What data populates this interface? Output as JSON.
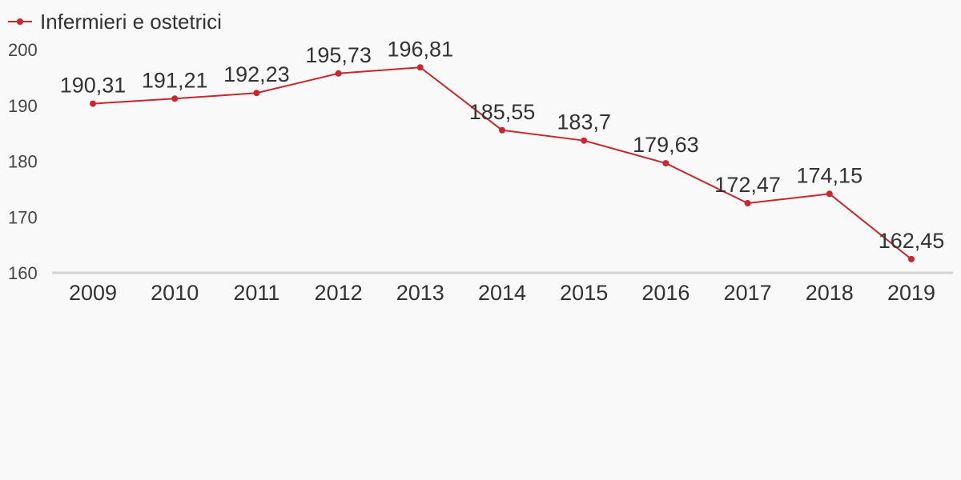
{
  "chart_data": {
    "type": "line",
    "title": "",
    "xlabel": "",
    "ylabel": "",
    "categories": [
      "2009",
      "2010",
      "2011",
      "2012",
      "2013",
      "2014",
      "2015",
      "2016",
      "2017",
      "2018",
      "2019"
    ],
    "series": [
      {
        "name": "Infermieri e ostetrici",
        "color": "#c8272d",
        "values": [
          190.31,
          191.21,
          192.23,
          195.73,
          196.81,
          185.55,
          183.7,
          179.63,
          172.47,
          174.15,
          162.45
        ],
        "labels": [
          "190,31",
          "191,21",
          "192,23",
          "195,73",
          "196,81",
          "185,55",
          "183,7",
          "179,63",
          "172,47",
          "174,15",
          "162,45"
        ]
      }
    ],
    "ylim": [
      160,
      200
    ],
    "yticks": [
      "160",
      "170",
      "180",
      "190",
      "200"
    ],
    "grid": false,
    "legend": "top-left",
    "axis_color": "#d3d3d3",
    "background": "#f9f9f9"
  }
}
